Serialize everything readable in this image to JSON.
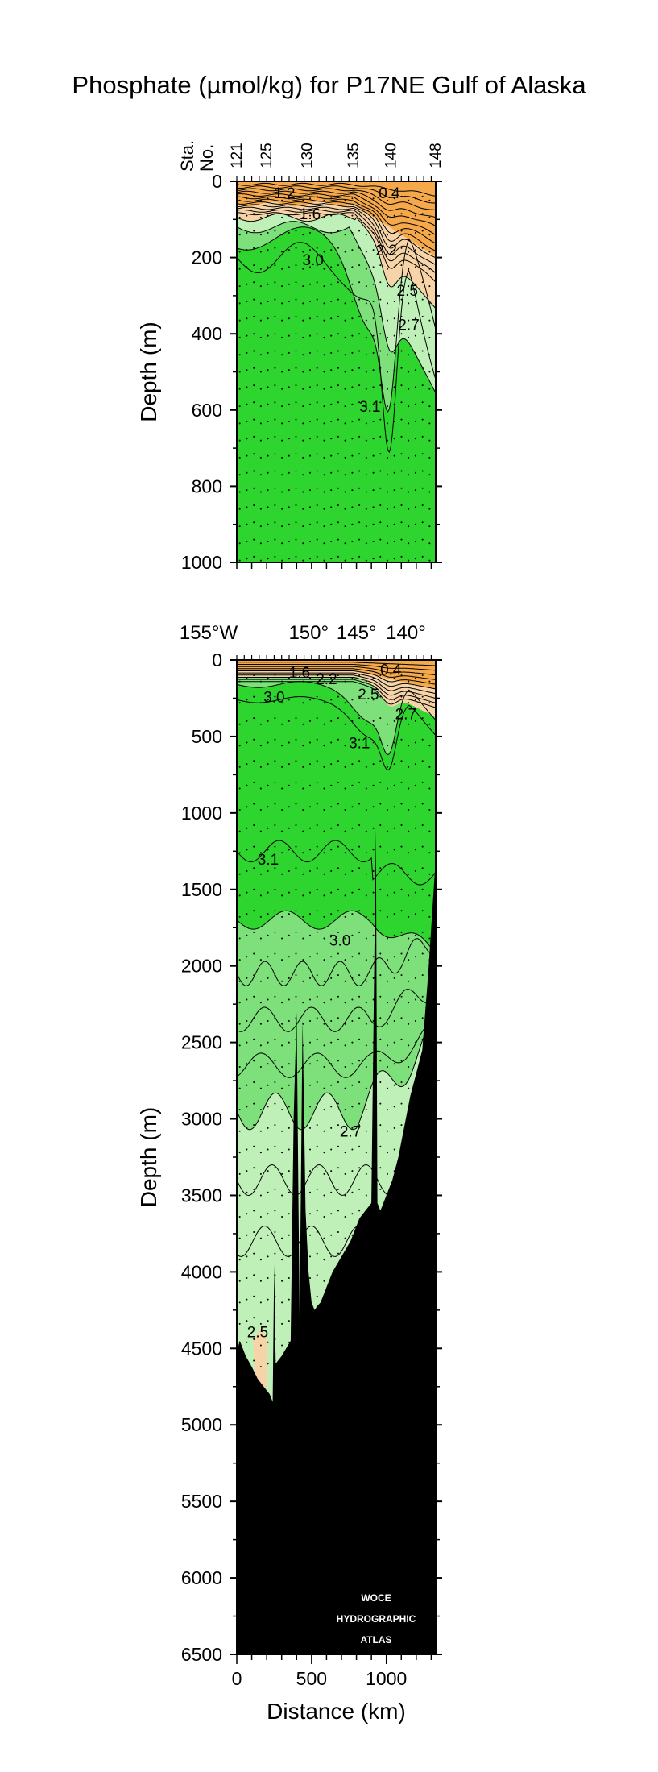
{
  "title": "Phosphate (µmol/kg) for P17NE Gulf of Alaska",
  "watermark": [
    "WOCE",
    "HYDROGRAPHIC",
    "ATLAS"
  ],
  "chart_data": [
    {
      "type": "heatmap",
      "panel": "upper",
      "variable": "Phosphate",
      "units": "µmol/kg",
      "ylabel": "Depth (m)",
      "ylim": [
        0,
        1000
      ],
      "y_inverted": true,
      "yticks": [
        "0",
        "200",
        "400",
        "600",
        "800",
        "1000"
      ],
      "yticks_values": [
        0,
        200,
        400,
        600,
        800,
        1000
      ],
      "station_axis_label": [
        "Sta.",
        "No."
      ],
      "stations": [
        "121",
        "125",
        "130",
        "135",
        "140",
        "148"
      ],
      "station_distance_km": [
        0,
        200,
        470,
        780,
        1030,
        1330
      ],
      "xlim_km": [
        0,
        1330
      ],
      "contour_labels": [
        {
          "text": "1.2",
          "distance_km": 320,
          "depth": 30
        },
        {
          "text": "0.4",
          "distance_km": 1020,
          "depth": 30
        },
        {
          "text": "1.6",
          "distance_km": 490,
          "depth": 85
        },
        {
          "text": "2.2",
          "distance_km": 1000,
          "depth": 180
        },
        {
          "text": "3.0",
          "distance_km": 510,
          "depth": 205
        },
        {
          "text": "2.5",
          "distance_km": 1140,
          "depth": 285
        },
        {
          "text": "2.7",
          "distance_km": 1150,
          "depth": 375
        },
        {
          "text": "3.1",
          "distance_km": 890,
          "depth": 590
        }
      ],
      "fill_levels": [
        {
          "range": "< 2.5",
          "color": "#f5a94a"
        },
        {
          "range": "2.5–2.7",
          "color": "#f7d4a7"
        },
        {
          "range": "2.7–3.0",
          "color": "#bff0b8"
        },
        {
          "range": "3.0–3.1",
          "color": "#7ee07a"
        },
        {
          "range": "> 3.1",
          "color": "#2ed52e"
        }
      ]
    },
    {
      "type": "heatmap",
      "panel": "lower",
      "variable": "Phosphate",
      "units": "µmol/kg",
      "xlabel": "Distance (km)",
      "ylabel": "Depth (m)",
      "xlim": [
        0,
        1330
      ],
      "xticks": [
        "0",
        "500",
        "1000"
      ],
      "xticks_values": [
        0,
        500,
        1000
      ],
      "ylim": [
        0,
        6500
      ],
      "y_inverted": true,
      "yticks": [
        "0",
        "500",
        "1000",
        "1500",
        "2000",
        "2500",
        "3000",
        "3500",
        "4000",
        "4500",
        "5000",
        "5500",
        "6000",
        "6500"
      ],
      "yticks_values": [
        0,
        500,
        1000,
        1500,
        2000,
        2500,
        3000,
        3500,
        4000,
        4500,
        5000,
        5500,
        6000,
        6500
      ],
      "longitude_labels": [
        {
          "text": "155°W",
          "distance_km": 0
        },
        {
          "text": "150°",
          "distance_km": 400
        },
        {
          "text": "145°",
          "distance_km": 720
        },
        {
          "text": "140°",
          "distance_km": 1050
        }
      ],
      "contour_labels": [
        {
          "text": "1.6",
          "distance_km": 420,
          "depth": 80
        },
        {
          "text": "0.4",
          "distance_km": 1030,
          "depth": 60
        },
        {
          "text": "2.2",
          "distance_km": 600,
          "depth": 120
        },
        {
          "text": "3.0",
          "distance_km": 250,
          "depth": 240
        },
        {
          "text": "2.5",
          "distance_km": 880,
          "depth": 220
        },
        {
          "text": "2.7",
          "distance_km": 1130,
          "depth": 350
        },
        {
          "text": "3.1",
          "distance_km": 820,
          "depth": 540
        },
        {
          "text": "3.1",
          "distance_km": 210,
          "depth": 1300
        },
        {
          "text": "3.0",
          "distance_km": 690,
          "depth": 1830
        },
        {
          "text": "2.7",
          "distance_km": 760,
          "depth": 3080
        },
        {
          "text": "2.5",
          "distance_km": 140,
          "depth": 4390
        }
      ],
      "bottom_depth_profile": {
        "distance_km": [
          0,
          20,
          60,
          100,
          140,
          180,
          220,
          240,
          250,
          260,
          300,
          330,
          360,
          380,
          400,
          420,
          440,
          460,
          480,
          500,
          520,
          540,
          560,
          580,
          600,
          640,
          700,
          760,
          820,
          860,
          900,
          930,
          940,
          960,
          980,
          1000,
          1040,
          1080,
          1120,
          1160,
          1200,
          1240,
          1260,
          1280,
          1300,
          1320,
          1330
        ],
        "depth": [
          4520,
          4450,
          4550,
          4620,
          4700,
          4750,
          4800,
          4850,
          3950,
          4600,
          4550,
          4500,
          4450,
          3000,
          2300,
          4300,
          2350,
          3600,
          4000,
          4200,
          4250,
          4220,
          4200,
          4150,
          4100,
          4000,
          3900,
          3800,
          3650,
          3600,
          3550,
          1100,
          3550,
          3600,
          3550,
          3500,
          3400,
          3250,
          3050,
          2850,
          2700,
          2550,
          2300,
          2050,
          1750,
          1450,
          1300
        ]
      },
      "fill_levels": [
        {
          "range": "< 2.5",
          "color": "#f5a94a"
        },
        {
          "range": "2.5–2.7",
          "color": "#f7d4a7"
        },
        {
          "range": "2.7–3.0",
          "color": "#bff0b8"
        },
        {
          "range": "3.0–3.1",
          "color": "#7ee07a"
        },
        {
          "range": "> 3.1",
          "color": "#2ed52e"
        },
        {
          "range": "seafloor",
          "color": "#000000"
        }
      ]
    }
  ]
}
